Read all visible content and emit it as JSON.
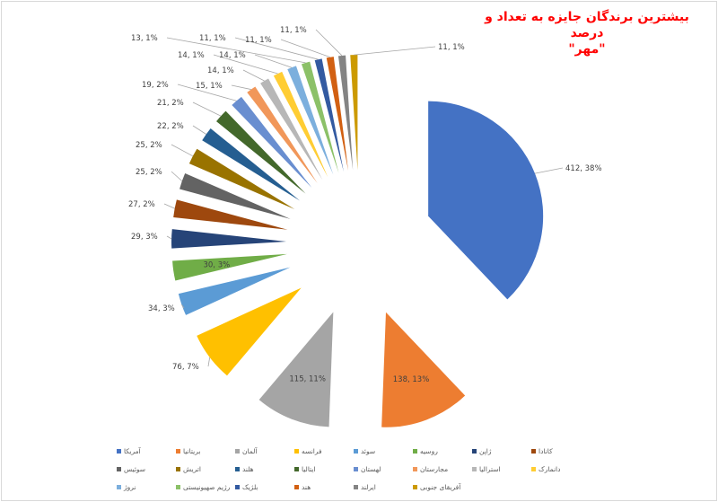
{
  "chart_data": {
    "type": "pie",
    "title": "بیشترین برندگان جایزه به تعداد و درصد \"مهر\"",
    "title_line1": "بیشترین برندگان جایزه به تعداد و درصد",
    "title_line2": "\"مهر\"",
    "exploded": true,
    "categories": [
      "آمریکا",
      "بریتانیا",
      "آلمان",
      "فرانسه",
      "سوئد",
      "روسیه",
      "ژاپن",
      "کانادا",
      "سوئیس",
      "اتریش",
      "هلند",
      "ایتالیا",
      "لهستان",
      "مجارستان",
      "استرالیا",
      "دانمارک",
      "نروژ",
      "رژیم صهیونیستی",
      "بلژیک",
      "هند",
      "ایرلند",
      "آفریقای جنوبی"
    ],
    "values": [
      412,
      138,
      115,
      76,
      34,
      30,
      29,
      27,
      25,
      25,
      22,
      21,
      19,
      15,
      14,
      14,
      14,
      13,
      11,
      11,
      11,
      11
    ],
    "percent_labels": [
      "38%",
      "13%",
      "11%",
      "7%",
      "3%",
      "3%",
      "3%",
      "2%",
      "2%",
      "2%",
      "2%",
      "2%",
      "2%",
      "1%",
      "1%",
      "1%",
      "1%",
      "1%",
      "1%",
      "1%",
      "1%",
      "1%"
    ],
    "data_labels": [
      "412, 38%",
      "138, 13%",
      "115, 11%",
      "76, 7%",
      "34, 3%",
      "30, 3%",
      "29, 3%",
      "27, 2%",
      "25, 2%",
      "25, 2%",
      "22, 2%",
      "21, 2%",
      "19, 2%",
      "15, 1%",
      "14, 1%",
      "14, 1%",
      "14, 1%",
      "13, 1%",
      "11, 1%",
      "11, 1%",
      "11, 1%",
      "11, 1%"
    ],
    "colors": [
      "#4472c4",
      "#ed7d31",
      "#a5a5a5",
      "#ffc000",
      "#5b9bd5",
      "#70ad47",
      "#264478",
      "#9e480e",
      "#636363",
      "#997300",
      "#255e91",
      "#43682b",
      "#698ed0",
      "#f1975a",
      "#b7b7b7",
      "#ffcd33",
      "#7cafdd",
      "#8cc168",
      "#335aa1",
      "#d26012",
      "#848484",
      "#cc9a00"
    ],
    "legend_position": "bottom"
  },
  "legend": {
    "rows": [
      [
        0,
        1,
        2,
        3,
        4,
        5,
        6,
        7
      ],
      [
        8,
        9,
        10,
        11,
        12,
        13,
        14,
        15
      ],
      [
        16,
        17,
        18,
        19,
        20,
        21
      ]
    ]
  }
}
